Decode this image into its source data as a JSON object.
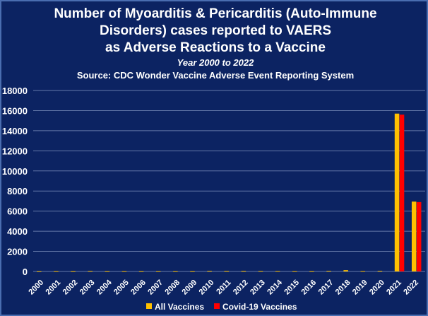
{
  "chart_data": {
    "type": "bar",
    "title": [
      "Number of Myoarditis & Pericarditis (Auto-Immune",
      "Disorders) cases reported to VAERS",
      "as Adverse Reactions to a Vaccine"
    ],
    "subtitle": "Year 2000 to 2022",
    "source": "Source: CDC Wonder Vaccine Adverse Event Reporting System",
    "categories": [
      "2000",
      "2001",
      "2002",
      "2003",
      "2004",
      "2005",
      "2006",
      "2007",
      "2008",
      "2009",
      "2010",
      "2011",
      "2012",
      "2013",
      "2014",
      "2015",
      "2016",
      "2017",
      "2018",
      "2019",
      "2020",
      "2021",
      "2022"
    ],
    "series": [
      {
        "name": "All Vaccines",
        "color": "#ffc000",
        "values": [
          20,
          30,
          25,
          50,
          25,
          30,
          25,
          25,
          25,
          25,
          60,
          50,
          55,
          45,
          40,
          30,
          25,
          60,
          130,
          40,
          60,
          15700,
          6950
        ]
      },
      {
        "name": "Covid-19 Vaccines",
        "color": "#ff0000",
        "values": [
          0,
          0,
          0,
          0,
          0,
          0,
          0,
          0,
          0,
          0,
          0,
          0,
          0,
          0,
          0,
          0,
          0,
          0,
          0,
          0,
          0,
          15600,
          6900
        ]
      }
    ],
    "ylim": [
      0,
      18000
    ],
    "yticks": [
      "0",
      "2000",
      "4000",
      "6000",
      "8000",
      "10000",
      "12000",
      "14000",
      "16000",
      "18000"
    ],
    "grid": true,
    "legend": "bottom"
  }
}
